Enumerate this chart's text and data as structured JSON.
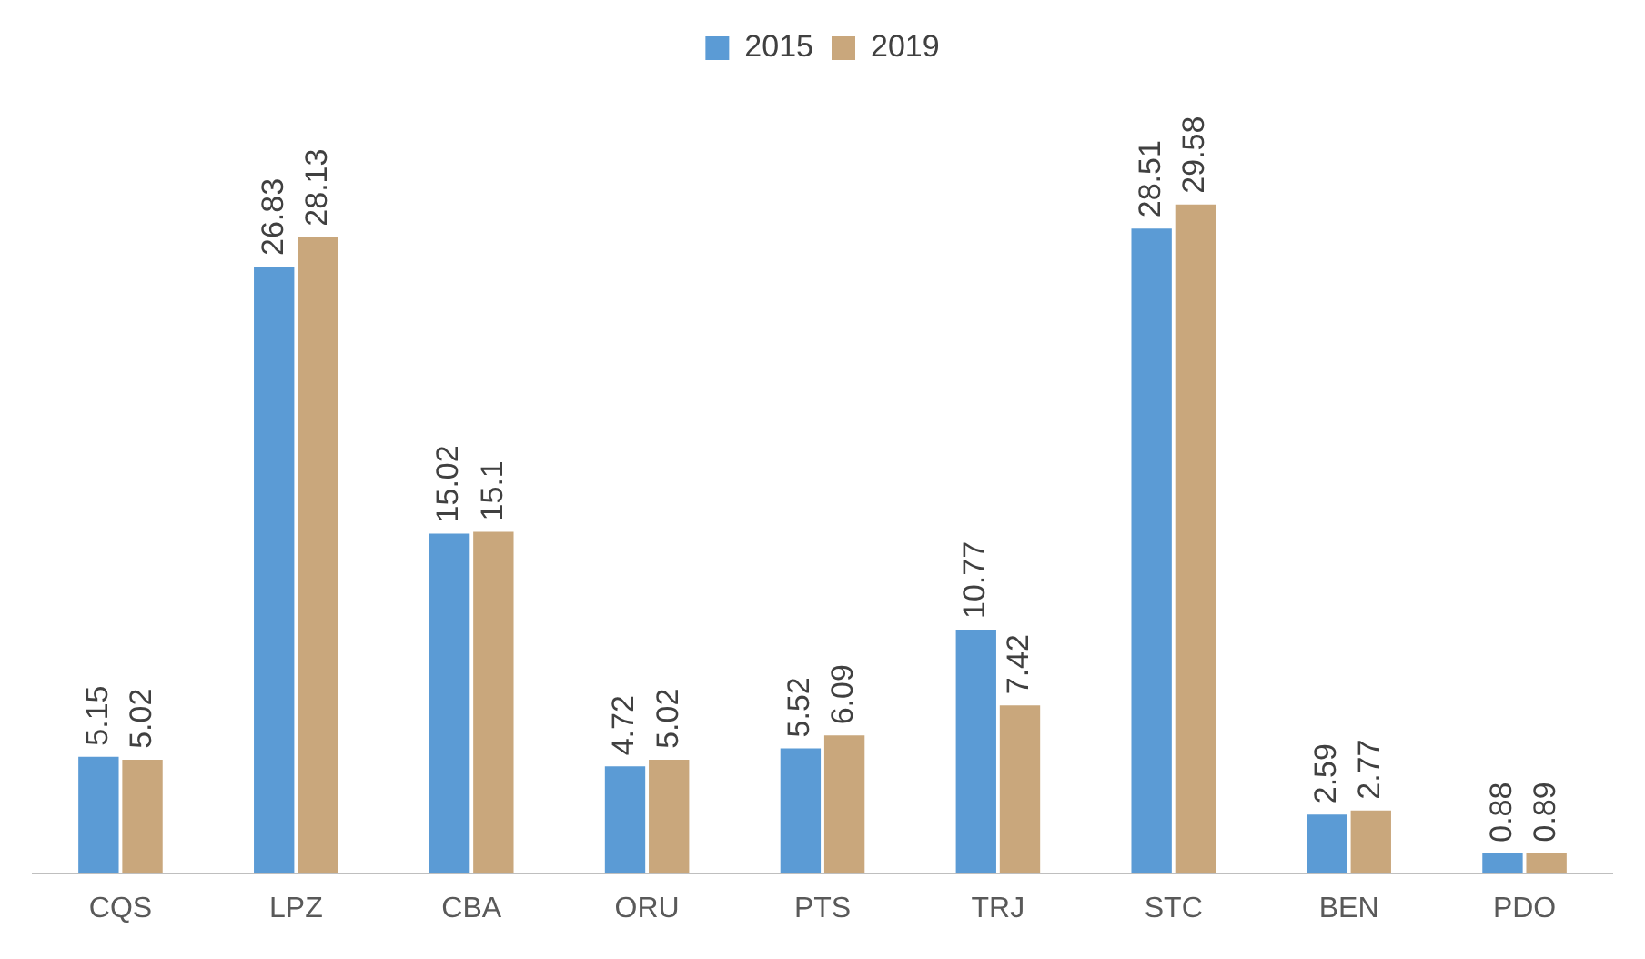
{
  "chart_data": {
    "type": "bar",
    "categories": [
      "CQS",
      "LPZ",
      "CBA",
      "ORU",
      "PTS",
      "TRJ",
      "STC",
      "BEN",
      "PDO"
    ],
    "series": [
      {
        "name": "2015",
        "color": "#5b9bd5",
        "values": [
          5.15,
          26.83,
          15.02,
          4.72,
          5.52,
          10.77,
          28.51,
          2.59,
          0.88
        ]
      },
      {
        "name": "2019",
        "color": "#c9a77c",
        "values": [
          5.02,
          28.13,
          15.1,
          5.02,
          6.09,
          7.42,
          29.58,
          2.77,
          0.89
        ]
      }
    ],
    "data_labels": true,
    "legend": "top",
    "grid": false
  }
}
